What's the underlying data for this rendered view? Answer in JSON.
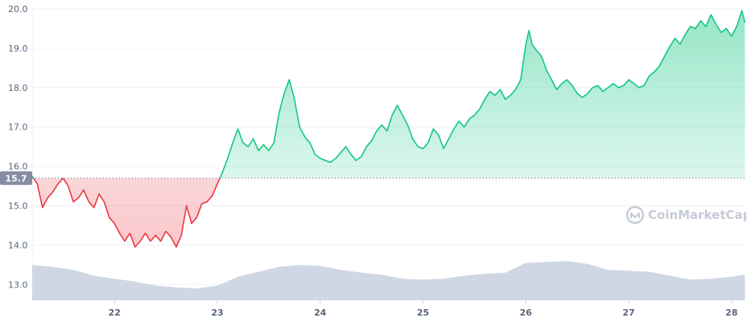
{
  "chart_data": {
    "type": "area",
    "watermark": "CoinMarketCap",
    "baseline_value": 15.7,
    "baseline_label": "15.7",
    "x_ticks": [
      "22",
      "23",
      "24",
      "25",
      "26",
      "27",
      "28"
    ],
    "y_ticks": [
      "13.0",
      "14.0",
      "15.0",
      "16.0",
      "17.0",
      "18.0",
      "19.0",
      "20.0"
    ],
    "xlim": [
      21.2,
      28.15
    ],
    "ylim": [
      12.6,
      20.1
    ],
    "price_series": {
      "name": "",
      "points": [
        [
          21.2,
          15.75
        ],
        [
          21.25,
          15.55
        ],
        [
          21.3,
          14.95
        ],
        [
          21.35,
          15.2
        ],
        [
          21.4,
          15.35
        ],
        [
          21.45,
          15.55
        ],
        [
          21.5,
          15.7
        ],
        [
          21.55,
          15.5
        ],
        [
          21.6,
          15.1
        ],
        [
          21.65,
          15.2
        ],
        [
          21.7,
          15.4
        ],
        [
          21.75,
          15.1
        ],
        [
          21.8,
          14.95
        ],
        [
          21.85,
          15.3
        ],
        [
          21.9,
          15.1
        ],
        [
          21.95,
          14.7
        ],
        [
          22.0,
          14.55
        ],
        [
          22.05,
          14.3
        ],
        [
          22.1,
          14.1
        ],
        [
          22.15,
          14.3
        ],
        [
          22.2,
          13.95
        ],
        [
          22.25,
          14.1
        ],
        [
          22.3,
          14.3
        ],
        [
          22.35,
          14.1
        ],
        [
          22.4,
          14.25
        ],
        [
          22.45,
          14.1
        ],
        [
          22.5,
          14.35
        ],
        [
          22.55,
          14.2
        ],
        [
          22.6,
          13.95
        ],
        [
          22.65,
          14.25
        ],
        [
          22.7,
          15.0
        ],
        [
          22.75,
          14.55
        ],
        [
          22.8,
          14.7
        ],
        [
          22.85,
          15.05
        ],
        [
          22.9,
          15.1
        ],
        [
          22.95,
          15.25
        ],
        [
          23.0,
          15.55
        ],
        [
          23.05,
          15.85
        ],
        [
          23.1,
          16.2
        ],
        [
          23.15,
          16.6
        ],
        [
          23.2,
          16.95
        ],
        [
          23.25,
          16.6
        ],
        [
          23.3,
          16.5
        ],
        [
          23.35,
          16.7
        ],
        [
          23.4,
          16.4
        ],
        [
          23.45,
          16.55
        ],
        [
          23.5,
          16.4
        ],
        [
          23.55,
          16.6
        ],
        [
          23.6,
          17.35
        ],
        [
          23.65,
          17.85
        ],
        [
          23.7,
          18.2
        ],
        [
          23.75,
          17.7
        ],
        [
          23.8,
          17.0
        ],
        [
          23.85,
          16.75
        ],
        [
          23.9,
          16.6
        ],
        [
          23.95,
          16.3
        ],
        [
          24.0,
          16.2
        ],
        [
          24.05,
          16.15
        ],
        [
          24.1,
          16.1
        ],
        [
          24.15,
          16.2
        ],
        [
          24.2,
          16.35
        ],
        [
          24.25,
          16.5
        ],
        [
          24.3,
          16.3
        ],
        [
          24.35,
          16.15
        ],
        [
          24.4,
          16.25
        ],
        [
          24.45,
          16.5
        ],
        [
          24.5,
          16.65
        ],
        [
          24.55,
          16.9
        ],
        [
          24.6,
          17.05
        ],
        [
          24.65,
          16.9
        ],
        [
          24.7,
          17.3
        ],
        [
          24.75,
          17.55
        ],
        [
          24.8,
          17.3
        ],
        [
          24.85,
          17.05
        ],
        [
          24.9,
          16.7
        ],
        [
          24.95,
          16.5
        ],
        [
          25.0,
          16.45
        ],
        [
          25.05,
          16.6
        ],
        [
          25.1,
          16.95
        ],
        [
          25.15,
          16.8
        ],
        [
          25.2,
          16.45
        ],
        [
          25.25,
          16.7
        ],
        [
          25.3,
          16.95
        ],
        [
          25.35,
          17.15
        ],
        [
          25.4,
          17.0
        ],
        [
          25.45,
          17.2
        ],
        [
          25.5,
          17.3
        ],
        [
          25.55,
          17.45
        ],
        [
          25.6,
          17.7
        ],
        [
          25.65,
          17.9
        ],
        [
          25.7,
          17.8
        ],
        [
          25.75,
          17.95
        ],
        [
          25.8,
          17.7
        ],
        [
          25.85,
          17.8
        ],
        [
          25.9,
          17.95
        ],
        [
          25.95,
          18.2
        ],
        [
          26.0,
          19.1
        ],
        [
          26.03,
          19.45
        ],
        [
          26.06,
          19.1
        ],
        [
          26.1,
          18.95
        ],
        [
          26.15,
          18.8
        ],
        [
          26.2,
          18.45
        ],
        [
          26.25,
          18.2
        ],
        [
          26.3,
          17.95
        ],
        [
          26.35,
          18.1
        ],
        [
          26.4,
          18.2
        ],
        [
          26.45,
          18.05
        ],
        [
          26.5,
          17.85
        ],
        [
          26.55,
          17.75
        ],
        [
          26.6,
          17.85
        ],
        [
          26.65,
          18.0
        ],
        [
          26.7,
          18.05
        ],
        [
          26.75,
          17.9
        ],
        [
          26.8,
          18.0
        ],
        [
          26.85,
          18.1
        ],
        [
          26.9,
          18.0
        ],
        [
          26.95,
          18.05
        ],
        [
          27.0,
          18.2
        ],
        [
          27.05,
          18.1
        ],
        [
          27.1,
          18.0
        ],
        [
          27.15,
          18.05
        ],
        [
          27.2,
          18.3
        ],
        [
          27.25,
          18.4
        ],
        [
          27.3,
          18.55
        ],
        [
          27.35,
          18.8
        ],
        [
          27.4,
          19.05
        ],
        [
          27.45,
          19.25
        ],
        [
          27.5,
          19.1
        ],
        [
          27.55,
          19.35
        ],
        [
          27.6,
          19.55
        ],
        [
          27.65,
          19.5
        ],
        [
          27.7,
          19.7
        ],
        [
          27.75,
          19.55
        ],
        [
          27.8,
          19.85
        ],
        [
          27.85,
          19.6
        ],
        [
          27.9,
          19.4
        ],
        [
          27.95,
          19.5
        ],
        [
          28.0,
          19.3
        ],
        [
          28.05,
          19.55
        ],
        [
          28.1,
          19.95
        ],
        [
          28.13,
          19.65
        ]
      ]
    },
    "volume_series": {
      "name": "",
      "points": [
        [
          21.2,
          0.72
        ],
        [
          21.4,
          0.68
        ],
        [
          21.6,
          0.62
        ],
        [
          21.8,
          0.5
        ],
        [
          22.0,
          0.44
        ],
        [
          22.2,
          0.38
        ],
        [
          22.4,
          0.3
        ],
        [
          22.6,
          0.26
        ],
        [
          22.8,
          0.24
        ],
        [
          23.0,
          0.3
        ],
        [
          23.2,
          0.48
        ],
        [
          23.4,
          0.58
        ],
        [
          23.6,
          0.68
        ],
        [
          23.8,
          0.72
        ],
        [
          24.0,
          0.7
        ],
        [
          24.2,
          0.62
        ],
        [
          24.4,
          0.56
        ],
        [
          24.6,
          0.52
        ],
        [
          24.8,
          0.44
        ],
        [
          25.0,
          0.42
        ],
        [
          25.2,
          0.44
        ],
        [
          25.4,
          0.5
        ],
        [
          25.6,
          0.54
        ],
        [
          25.8,
          0.56
        ],
        [
          26.0,
          0.76
        ],
        [
          26.2,
          0.78
        ],
        [
          26.4,
          0.8
        ],
        [
          26.6,
          0.74
        ],
        [
          26.8,
          0.62
        ],
        [
          27.0,
          0.6
        ],
        [
          27.2,
          0.58
        ],
        [
          27.4,
          0.5
        ],
        [
          27.6,
          0.42
        ],
        [
          27.8,
          0.44
        ],
        [
          28.0,
          0.48
        ],
        [
          28.13,
          0.52
        ]
      ]
    },
    "colors": {
      "up_line": "#16c784",
      "down_line": "#ea3943",
      "volume_fill": "#cfd6e4",
      "grid": "#eff2f5",
      "baseline_dots": "#58667e",
      "baseline_label_bg": "#858ca2",
      "axis_text": "#58667e"
    },
    "grid": true
  }
}
